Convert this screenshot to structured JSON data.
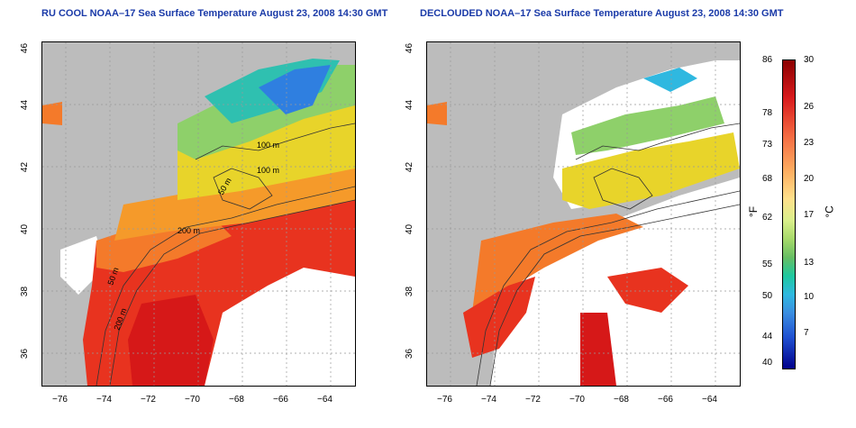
{
  "titles": {
    "left": "RU COOL NOAA–17 Sea Surface Temperature August 23, 2008 14:30 GMT",
    "right": "DECLOUDED NOAA–17 Sea Surface Temperature August 23, 2008 14:30 GMT"
  },
  "axes": {
    "x_ticks": [
      "−76",
      "−74",
      "−72",
      "−70",
      "−68",
      "−66",
      "−64"
    ],
    "y_ticks": [
      "46",
      "44",
      "42",
      "40",
      "38",
      "36"
    ]
  },
  "contours": {
    "label_100_a": "100 m",
    "label_100_b": "100 m",
    "label_50": "50 m",
    "label_200": "200 m",
    "label_50_shelf": "50 m",
    "label_200_shelf": "200 m"
  },
  "colorbar": {
    "fahrenheit": [
      "86",
      "78",
      "73",
      "68",
      "62",
      "55",
      "50",
      "44",
      "40"
    ],
    "celsius": [
      "30",
      "26",
      "23",
      "20",
      "17",
      "13",
      "10",
      "7"
    ],
    "unit_f": "°F",
    "unit_c": "°C"
  }
}
